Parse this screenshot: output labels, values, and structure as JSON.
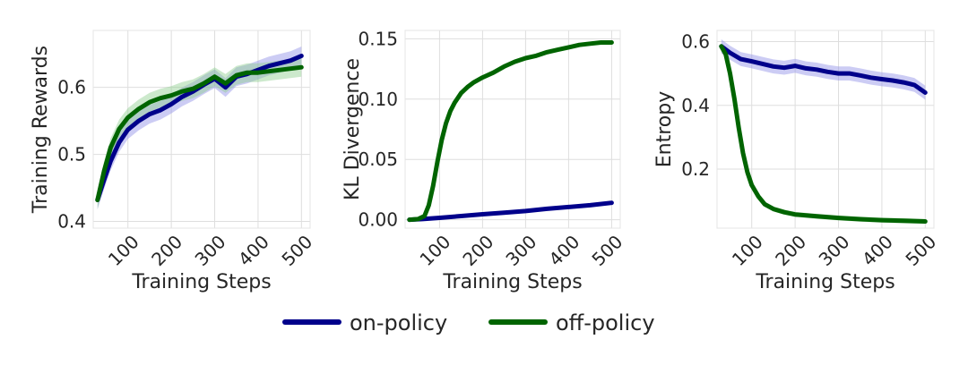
{
  "chart_data": [
    {
      "type": "line",
      "title": "",
      "xlabel": "Training Steps",
      "ylabel": "Training Rewards",
      "xlim": [
        20,
        520
      ],
      "ylim": [
        0.39,
        0.685
      ],
      "xticks": [
        100,
        200,
        300,
        400,
        500
      ],
      "xtick_labels": [
        "100",
        "200",
        "300",
        "400",
        "500"
      ],
      "yticks": [
        0.4,
        0.5,
        0.6
      ],
      "ytick_labels": [
        "0.4",
        "0.5",
        "0.6"
      ],
      "grid": true,
      "series": [
        {
          "name": "on-policy",
          "color": "#00008b",
          "band_color": "#8e8ee6",
          "x": [
            30,
            45,
            60,
            80,
            100,
            125,
            150,
            175,
            200,
            225,
            250,
            275,
            300,
            325,
            350,
            375,
            400,
            425,
            450,
            475,
            500
          ],
          "y": [
            0.432,
            0.462,
            0.49,
            0.518,
            0.537,
            0.55,
            0.56,
            0.566,
            0.575,
            0.586,
            0.594,
            0.604,
            0.613,
            0.6,
            0.616,
            0.62,
            0.626,
            0.632,
            0.636,
            0.64,
            0.647
          ],
          "band": 0.014
        },
        {
          "name": "off-policy",
          "color": "#006400",
          "band_color": "#8fcf8f",
          "x": [
            30,
            45,
            60,
            80,
            100,
            125,
            150,
            175,
            200,
            225,
            250,
            275,
            300,
            325,
            350,
            375,
            400,
            425,
            450,
            475,
            500
          ],
          "y": [
            0.432,
            0.475,
            0.51,
            0.538,
            0.555,
            0.568,
            0.578,
            0.584,
            0.588,
            0.594,
            0.598,
            0.606,
            0.616,
            0.606,
            0.618,
            0.622,
            0.622,
            0.624,
            0.626,
            0.628,
            0.63
          ],
          "band": 0.014
        }
      ]
    },
    {
      "type": "line",
      "title": "",
      "xlabel": "Training Steps",
      "ylabel": "KL Divergence",
      "xlim": [
        20,
        520
      ],
      "ylim": [
        -0.007,
        0.157
      ],
      "xticks": [
        100,
        200,
        300,
        400,
        500
      ],
      "xtick_labels": [
        "100",
        "200",
        "300",
        "400",
        "500"
      ],
      "yticks": [
        0.0,
        0.05,
        0.1,
        0.15
      ],
      "ytick_labels": [
        "0.00",
        "0.05",
        "0.10",
        "0.15"
      ],
      "grid": true,
      "series": [
        {
          "name": "on-policy",
          "color": "#00008b",
          "band_color": "#8e8ee6",
          "x": [
            30,
            60,
            100,
            150,
            200,
            250,
            300,
            350,
            400,
            450,
            500
          ],
          "y": [
            0.0,
            0.0005,
            0.0015,
            0.003,
            0.0045,
            0.0058,
            0.0072,
            0.009,
            0.0105,
            0.012,
            0.014
          ],
          "band": 0.0008
        },
        {
          "name": "off-policy",
          "color": "#006400",
          "band_color": "#8fcf8f",
          "x": [
            30,
            50,
            65,
            75,
            85,
            95,
            105,
            115,
            125,
            135,
            150,
            165,
            180,
            200,
            225,
            250,
            275,
            300,
            325,
            350,
            375,
            400,
            425,
            450,
            475,
            500
          ],
          "y": [
            0.0,
            0.0005,
            0.003,
            0.012,
            0.028,
            0.048,
            0.066,
            0.08,
            0.09,
            0.097,
            0.105,
            0.11,
            0.114,
            0.118,
            0.122,
            0.127,
            0.131,
            0.134,
            0.136,
            0.139,
            0.141,
            0.143,
            0.145,
            0.146,
            0.147,
            0.147
          ],
          "band": 0.001
        }
      ]
    },
    {
      "type": "line",
      "title": "",
      "xlabel": "Training Steps",
      "ylabel": "Entropy",
      "xlim": [
        20,
        520
      ],
      "ylim": [
        0.015,
        0.635
      ],
      "xticks": [
        100,
        200,
        300,
        400,
        500
      ],
      "xtick_labels": [
        "100",
        "200",
        "300",
        "400",
        "500"
      ],
      "yticks": [
        0.2,
        0.4,
        0.6
      ],
      "ytick_labels": [
        "0.2",
        "0.4",
        "0.6"
      ],
      "grid": true,
      "series": [
        {
          "name": "on-policy",
          "color": "#00008b",
          "band_color": "#8e8ee6",
          "x": [
            30,
            50,
            75,
            100,
            125,
            150,
            175,
            200,
            225,
            250,
            275,
            300,
            325,
            350,
            375,
            400,
            425,
            450,
            475,
            500
          ],
          "y": [
            0.585,
            0.565,
            0.545,
            0.538,
            0.53,
            0.522,
            0.518,
            0.524,
            0.516,
            0.512,
            0.505,
            0.5,
            0.5,
            0.494,
            0.487,
            0.482,
            0.478,
            0.472,
            0.464,
            0.44
          ],
          "band": 0.022
        },
        {
          "name": "off-policy",
          "color": "#006400",
          "band_color": "#8fcf8f",
          "x": [
            30,
            40,
            50,
            60,
            70,
            80,
            90,
            100,
            115,
            130,
            150,
            175,
            200,
            250,
            300,
            350,
            400,
            450,
            500
          ],
          "y": [
            0.585,
            0.56,
            0.5,
            0.42,
            0.33,
            0.25,
            0.19,
            0.15,
            0.115,
            0.09,
            0.075,
            0.065,
            0.058,
            0.052,
            0.047,
            0.043,
            0.04,
            0.038,
            0.036
          ],
          "band": 0.008
        }
      ]
    }
  ],
  "legend": {
    "placement": "bottom-center",
    "items": [
      {
        "label": "on-policy",
        "color": "#00008b"
      },
      {
        "label": "off-policy",
        "color": "#006400"
      }
    ]
  }
}
